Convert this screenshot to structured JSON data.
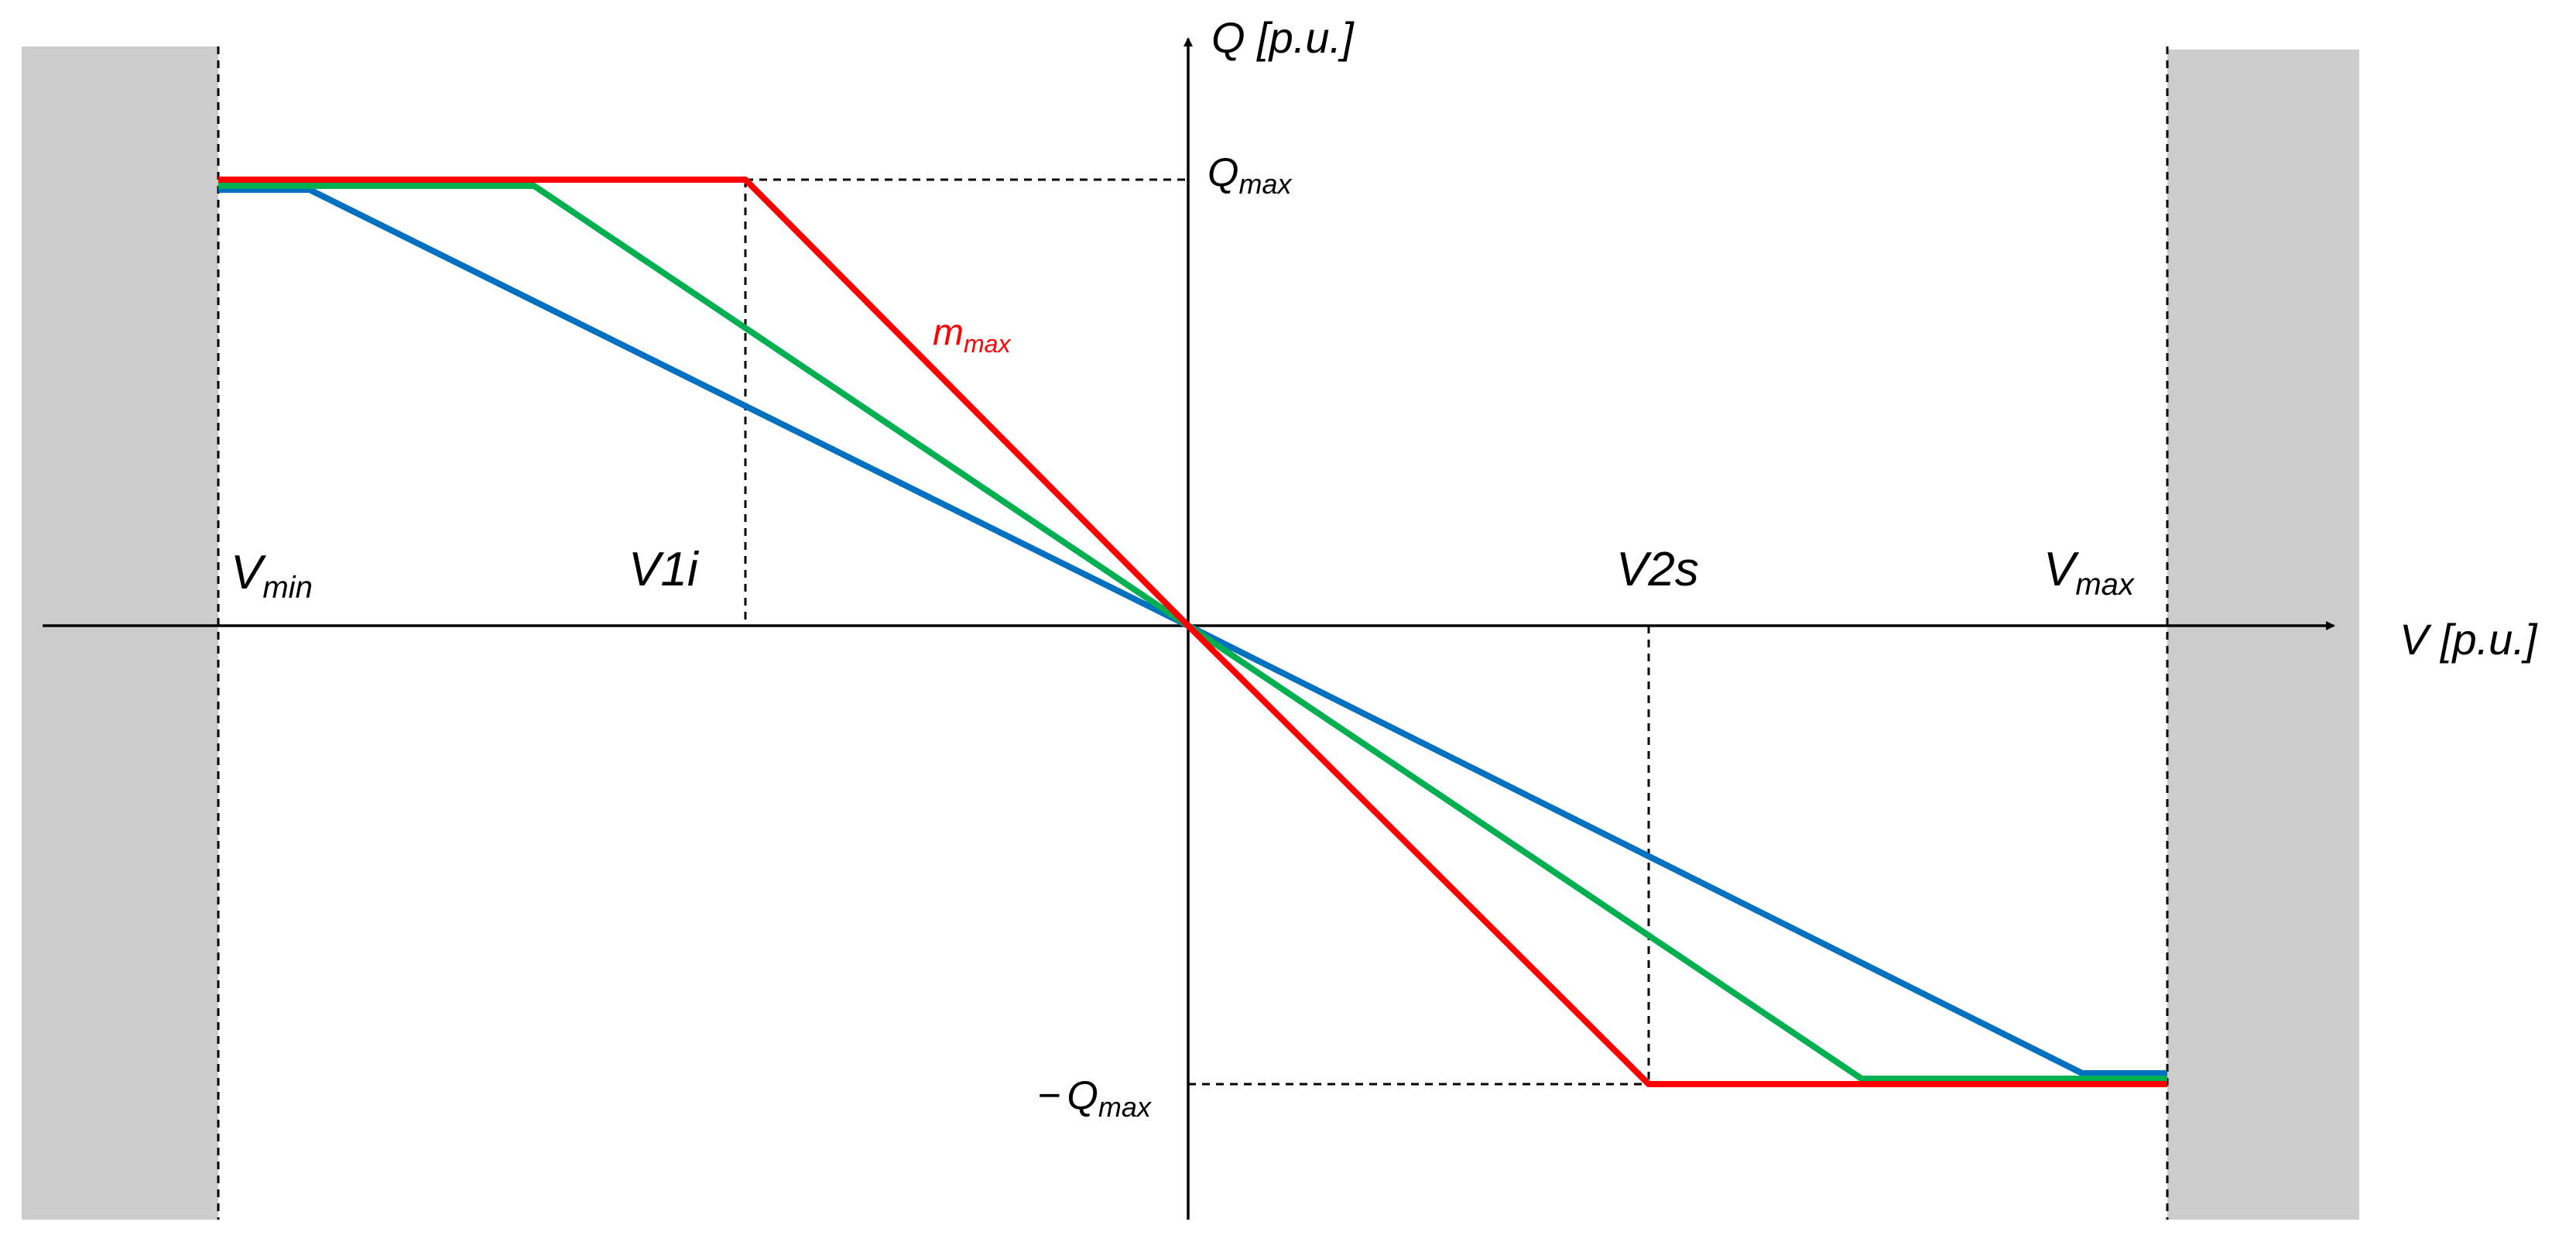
{
  "axes": {
    "x_label": "V [p.u.]",
    "y_label": "Q [p.u.]"
  },
  "ticks": {
    "vmin": {
      "base": "V",
      "sub": "min"
    },
    "v1i": "V1i",
    "v2s": "V2s",
    "vmax": {
      "base": "V",
      "sub": "max"
    },
    "qmax": {
      "base": "Q",
      "sub": "max"
    },
    "neg_qmax": {
      "prefix": "−",
      "base": "Q",
      "sub": "max"
    }
  },
  "annotation": {
    "base": "m",
    "sub": "max"
  },
  "colors": {
    "red": "#ff0000",
    "green": "#00b050",
    "blue": "#0070c0",
    "shade": "#cccccc",
    "axis": "#000000"
  },
  "curves": [
    {
      "color": "red",
      "description": "steepest droop (m max)"
    },
    {
      "color": "green",
      "description": "medium droop"
    },
    {
      "color": "blue",
      "description": "shallow droop"
    }
  ]
}
